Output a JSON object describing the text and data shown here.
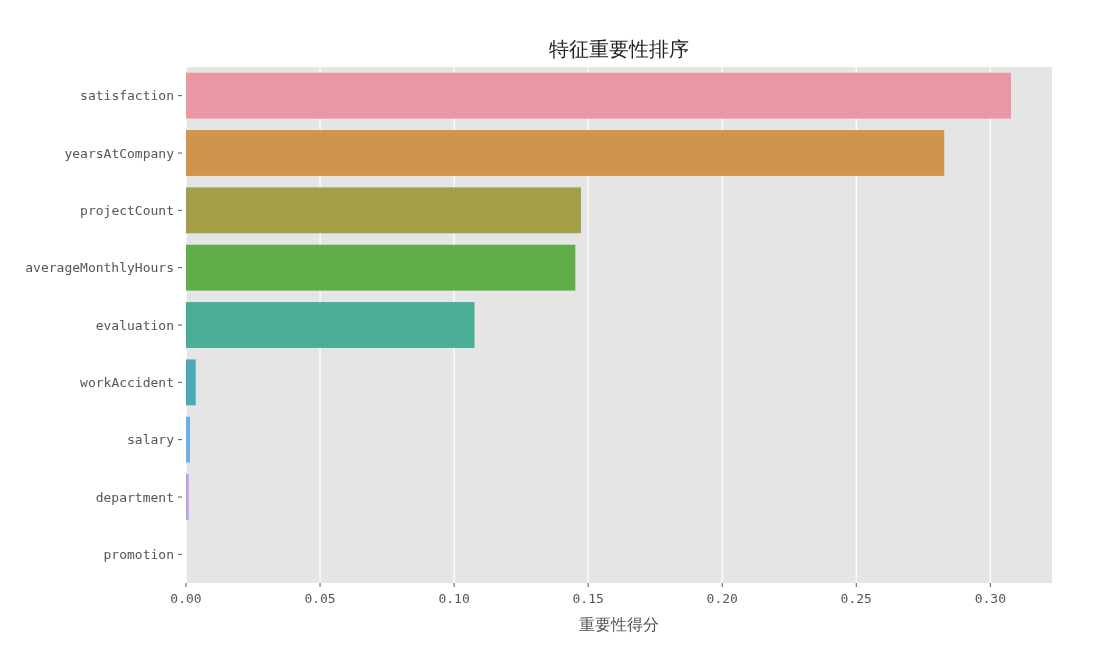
{
  "chart_data": {
    "type": "bar",
    "orientation": "horizontal",
    "title": "特征重要性排序",
    "xlabel": "重要性得分",
    "categories": [
      "satisfaction",
      "yearsAtCompany",
      "projectCount",
      "averageMonthlyHours",
      "evaluation",
      "workAccident",
      "salary",
      "department",
      "promotion"
    ],
    "values": [
      0.3077,
      0.2828,
      0.1473,
      0.1452,
      0.1076,
      0.0036,
      0.0015,
      0.001,
      null
    ],
    "colors": [
      "#ea96a3",
      "#d0954c",
      "#a39e48",
      "#60ae47",
      "#4aae97",
      "#4ba9b8",
      "#6fb0e0",
      "#c39ce6",
      null
    ],
    "xlim": [
      0,
      0.323
    ],
    "xticks": [
      {
        "value": 0,
        "label": "0.00"
      },
      {
        "value": 0.05,
        "label": "0.05"
      },
      {
        "value": 0.1,
        "label": "0.10"
      },
      {
        "value": 0.15,
        "label": "0.15"
      },
      {
        "value": 0.2,
        "label": "0.20"
      },
      {
        "value": 0.25,
        "label": "0.25"
      },
      {
        "value": 0.3,
        "label": "0.30"
      }
    ],
    "grid": "x"
  }
}
